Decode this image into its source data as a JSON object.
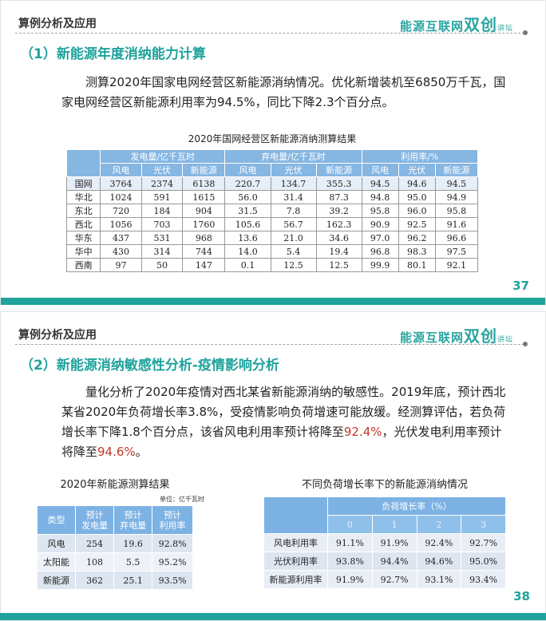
{
  "logo": {
    "text": "能源互联网双创讲坛"
  },
  "slide1": {
    "header": "算例分析及应用",
    "title": "（1）新能源年度消纳能力计算",
    "paragraph": "测算2020年国家电网经营区新能源消纳情况。优化新增装机至6850万千瓦，国家电网经营区新能源利用率为94.5%，同比下降2.3个百分点。",
    "table_caption": "2020年国网经营区新能源消纳测算结果",
    "groups": [
      "发电量/亿千瓦时",
      "弃电量/亿千瓦时",
      "利用率/%"
    ],
    "subheaders": [
      "风电",
      "光伏",
      "新能源",
      "风电",
      "光伏",
      "新能源",
      "风电",
      "光伏",
      "新能源"
    ],
    "rows": [
      [
        "国网",
        "3764",
        "2374",
        "6138",
        "220.7",
        "134.7",
        "355.3",
        "94.5",
        "94.6",
        "94.5"
      ],
      [
        "华北",
        "1024",
        "591",
        "1615",
        "56.0",
        "31.4",
        "87.3",
        "94.8",
        "95.0",
        "94.9"
      ],
      [
        "东北",
        "720",
        "184",
        "904",
        "31.5",
        "7.8",
        "39.2",
        "95.8",
        "96.0",
        "95.8"
      ],
      [
        "西北",
        "1056",
        "703",
        "1760",
        "105.6",
        "56.7",
        "162.3",
        "90.9",
        "92.5",
        "91.6"
      ],
      [
        "华东",
        "437",
        "531",
        "968",
        "13.6",
        "21.0",
        "34.6",
        "97.0",
        "96.2",
        "96.6"
      ],
      [
        "华中",
        "430",
        "314",
        "744",
        "14.0",
        "5.4",
        "19.4",
        "96.8",
        "98.3",
        "97.5"
      ],
      [
        "西南",
        "97",
        "50",
        "147",
        "0.1",
        "12.5",
        "12.5",
        "99.9",
        "80.1",
        "92.1"
      ]
    ],
    "page": "37"
  },
  "slide2": {
    "header": "算例分析及应用",
    "title": "（2）新能源消纳敏感性分析-疫情影响分析",
    "para_a": "量化分析了2020年疫情对西北某省新能源消纳的敏感性。2019年底，预计西北某省2020年负荷增长率3.8%，受疫情影响负荷增速可能放缓。经测算评估，若负荷增长率下降1.8个百分点，该省风电利用率预计将降至",
    "para_red1": "92.4%",
    "para_b": "，光伏发电利用率预计将降至",
    "para_red2": "94.6%",
    "para_c": "。",
    "left_caption": "2020年新能源测算结果",
    "unit": "单位：亿千瓦时",
    "left_headers": [
      "类型",
      "预计\n发电量",
      "预计\n弃电量",
      "预计\n利用率"
    ],
    "left_rows": [
      [
        "风电",
        "254",
        "19.6",
        "92.8%"
      ],
      [
        "太阳能",
        "108",
        "5.5",
        "95.2%"
      ],
      [
        "新能源",
        "362",
        "25.1",
        "93.5%"
      ]
    ],
    "right_caption": "不同负荷增长率下的新能源消纳情况",
    "right_group": "负荷增长率（%）",
    "right_sub": [
      "0",
      "1",
      "2",
      "3"
    ],
    "right_rows": [
      [
        "风电利用率",
        "91.1%",
        "91.9%",
        "92.4%",
        "92.7%"
      ],
      [
        "光伏利用率",
        "93.8%",
        "94.4%",
        "94.6%",
        "95.0%"
      ],
      [
        "新能源利用率",
        "91.9%",
        "92.7%",
        "93.1%",
        "93.4%"
      ]
    ],
    "page": "38"
  },
  "colors": {
    "accent": "#1fa39c",
    "table_header": "#86b6e2",
    "highlight": "#c0392b"
  }
}
